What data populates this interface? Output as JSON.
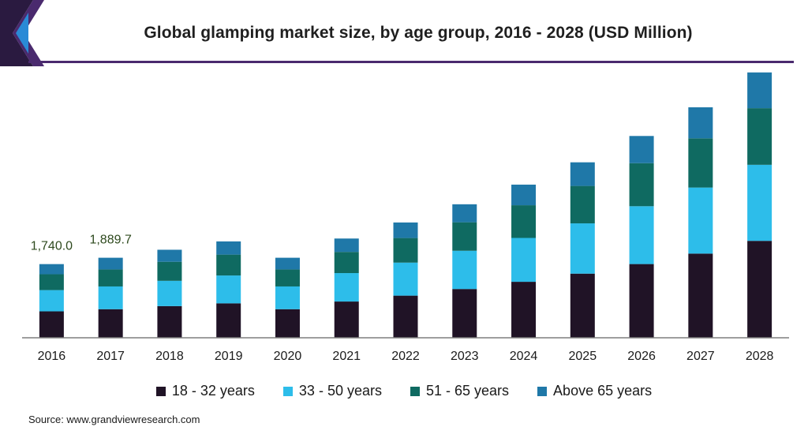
{
  "title": "Global glamping market size, by age group, 2016 - 2028 (USD Million)",
  "source": "Source: www.grandviewresearch.com",
  "colors": {
    "accent_rule": "#4a2a6e",
    "axis": "#7f7f7f",
    "label_green": "#2e4a1e"
  },
  "chart_data": {
    "type": "bar",
    "stacked": true,
    "categories": [
      "2016",
      "2017",
      "2018",
      "2019",
      "2020",
      "2021",
      "2022",
      "2023",
      "2024",
      "2025",
      "2026",
      "2027",
      "2028"
    ],
    "series": [
      {
        "name": "18 - 32 years",
        "color": "#201326",
        "values": [
          624,
          675,
          748,
          813,
          675,
          856,
          995,
          1152,
          1322,
          1515,
          1741,
          1988,
          2289
        ]
      },
      {
        "name": "33 - 50 years",
        "color": "#2dbdea",
        "values": [
          502,
          537,
          597,
          658,
          537,
          672,
          780,
          903,
          1036,
          1187,
          1366,
          1560,
          1796
        ]
      },
      {
        "name": "51 - 65 years",
        "color": "#0f6a61",
        "values": [
          374,
          402,
          450,
          493,
          402,
          500,
          581,
          673,
          772,
          884,
          1017,
          1162,
          1337
        ]
      },
      {
        "name": "Above 65 years",
        "color": "#1f78a8",
        "values": [
          240,
          276,
          284,
          312,
          276,
          316,
          367,
          425,
          487,
          558,
          642,
          734,
          845
        ]
      }
    ],
    "data_labels": [
      {
        "category": "2016",
        "text": "1,740.0"
      },
      {
        "category": "2017",
        "text": "1,889.7"
      }
    ],
    "ylim": [
      0,
      6300
    ],
    "xlabel": "",
    "ylabel": "",
    "grid": false,
    "legend": "bottom"
  }
}
